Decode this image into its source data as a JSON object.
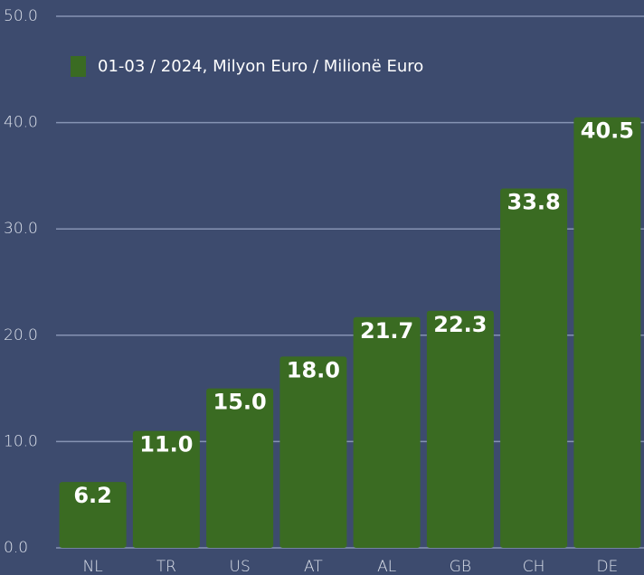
{
  "chart_data": {
    "type": "bar",
    "categories": [
      "NL",
      "TR",
      "US",
      "AT",
      "AL",
      "GB",
      "CH",
      "DE"
    ],
    "series": [
      {
        "name": "01-03 /  2024, Milyon Euro / Milionë Euro",
        "color": "#3a6b22",
        "values": [
          6.2,
          11,
          15,
          18,
          21.7,
          22.3,
          33.8,
          40.5
        ],
        "value_labels": [
          "6.2",
          "11.0",
          "15.0",
          "18.0",
          "21.7",
          "22.3",
          "33.8",
          "40.5"
        ]
      }
    ],
    "ylim": [
      0,
      50
    ],
    "yticks": [
      {
        "value": 0,
        "label": "0.0"
      },
      {
        "value": 10,
        "label": "10.0"
      },
      {
        "value": 20,
        "label": "20.0"
      },
      {
        "value": 30,
        "label": "30.0"
      },
      {
        "value": 40,
        "label": "40.0"
      },
      {
        "value": 50,
        "label": "50.0"
      }
    ],
    "grid": true,
    "legend": "top-left"
  }
}
